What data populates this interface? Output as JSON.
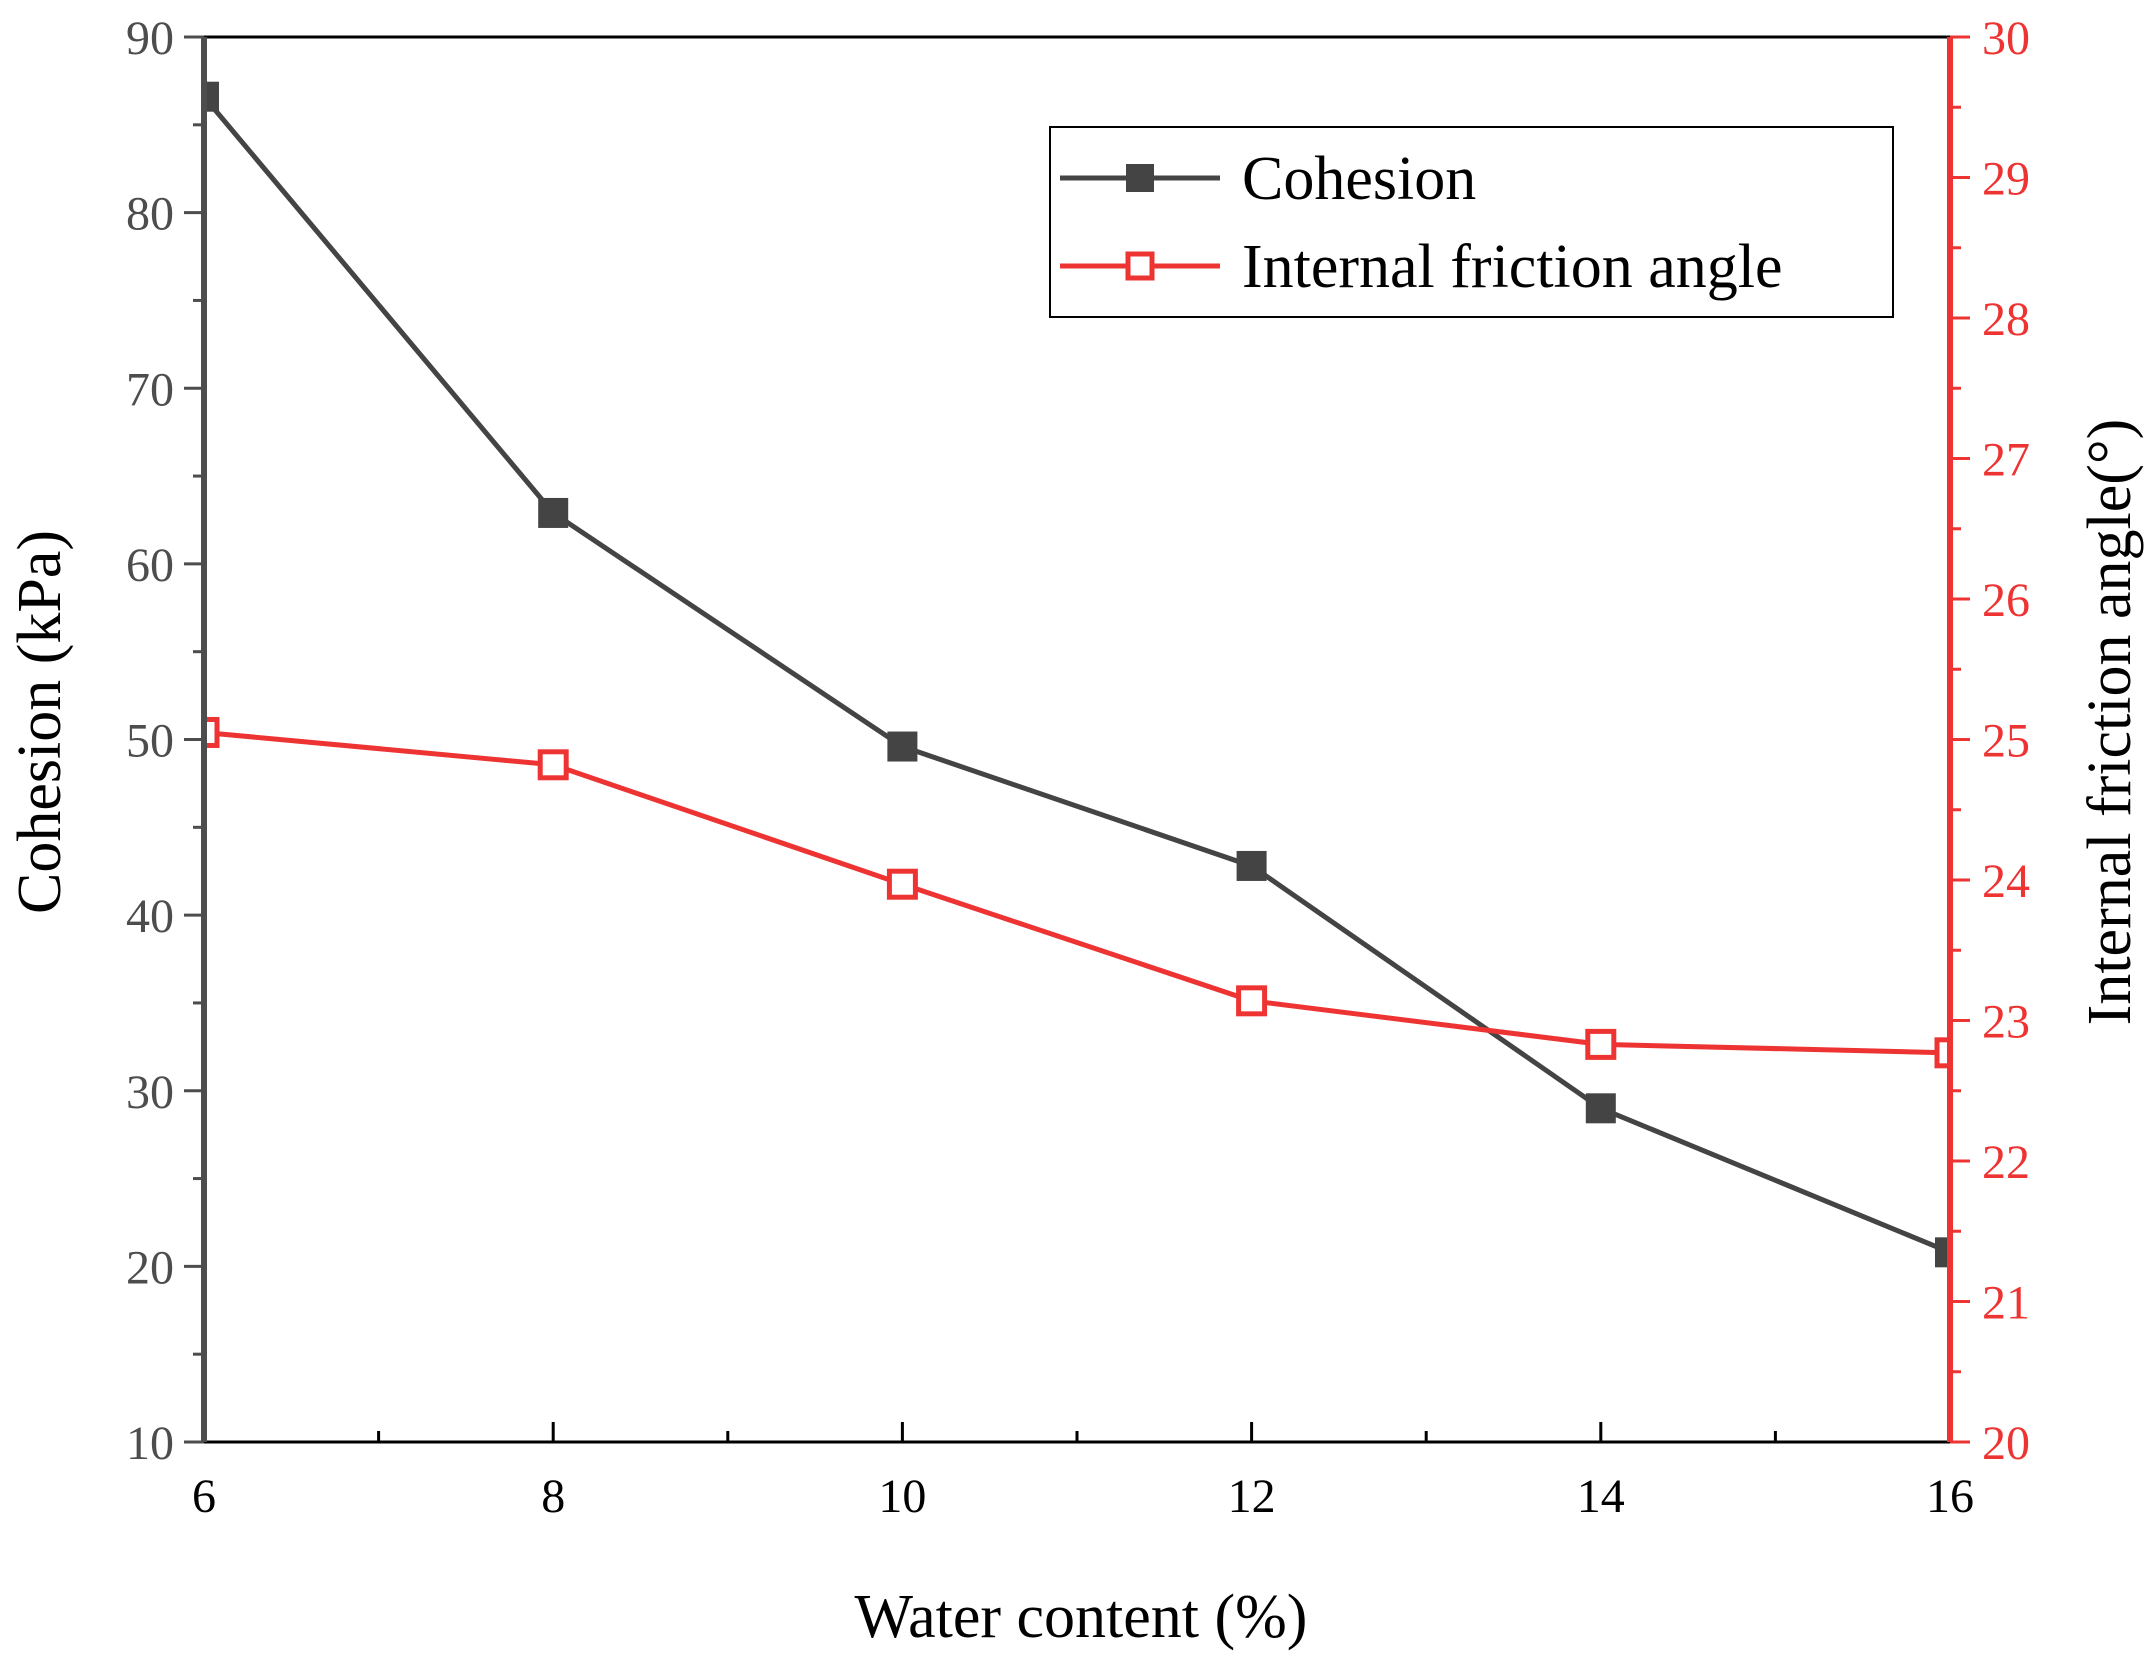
{
  "chart_data": {
    "type": "line",
    "title": "",
    "x": [
      6,
      8,
      10,
      12,
      14,
      16
    ],
    "xlabel": "Water content (%)",
    "xlim": [
      6,
      16
    ],
    "xticks": [
      6,
      8,
      10,
      12,
      14,
      16
    ],
    "xtick_labels": [
      "6",
      "8",
      "10",
      "12",
      "14",
      "16"
    ],
    "x_minor_step": 1,
    "ylabel_left": "Cohesion (kPa)",
    "ylim_left": [
      10,
      90
    ],
    "yticks_left": [
      10,
      20,
      30,
      40,
      50,
      60,
      70,
      80,
      90
    ],
    "ytick_labels_left": [
      "10",
      "20",
      "30",
      "40",
      "50",
      "60",
      "70",
      "80",
      "90"
    ],
    "y_left_minor_step": 5,
    "ylabel_right": "Internal friction angle(°)",
    "ylim_right": [
      20,
      30
    ],
    "yticks_right": [
      20,
      21,
      22,
      23,
      24,
      25,
      26,
      27,
      28,
      29,
      30
    ],
    "ytick_labels_right": [
      "20",
      "21",
      "22",
      "23",
      "24",
      "25",
      "26",
      "27",
      "28",
      "29",
      "30"
    ],
    "y_right_minor_step": 0.5,
    "grid": false,
    "legend_position": "top-right",
    "series": [
      {
        "name": "Cohesion",
        "axis": "left",
        "marker": "filled-square",
        "color": "#444444",
        "values": [
          86.6,
          62.9,
          49.6,
          42.8,
          29.0,
          20.8
        ]
      },
      {
        "name": "Internal friction angle",
        "axis": "right",
        "marker": "open-square",
        "color": "#ee3333",
        "values": [
          25.05,
          24.82,
          23.97,
          23.14,
          22.83,
          22.77
        ]
      }
    ],
    "left_axis_color": "#4d4d4d",
    "right_axis_color": "#ee3333",
    "frame_color": "#000000"
  }
}
